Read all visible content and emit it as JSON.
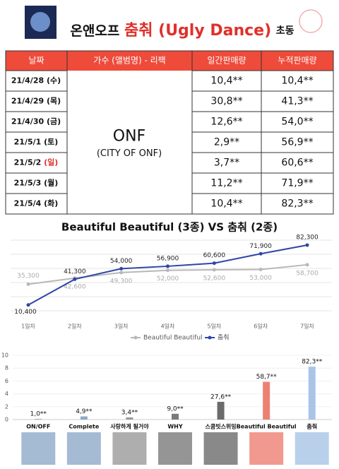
{
  "header": {
    "artist": "온앤오프",
    "song": "춤춰 (Ugly Dance)",
    "suffix": "초동"
  },
  "table": {
    "headers": [
      "날짜",
      "가수 (앨범명) - 리팩",
      "일간판매량",
      "누적판매량"
    ],
    "artist": "ONF",
    "album": "(CITY OF ONF)",
    "rows": [
      [
        "21/4/28",
        "(수)",
        "10,4**",
        "10,4**"
      ],
      [
        "21/4/29",
        "(목)",
        "30,8**",
        "41,3**"
      ],
      [
        "21/4/30",
        "(금)",
        "12,6**",
        "54,0**"
      ],
      [
        "21/5/1",
        "(토)",
        "2,9**",
        "56,9**"
      ],
      [
        "21/5/2",
        "(일)",
        "3,7**",
        "60,6**"
      ],
      [
        "21/5/3",
        "(월)",
        "11,2**",
        "71,9**"
      ],
      [
        "21/5/4",
        "(화)",
        "10,4**",
        "82,3**"
      ]
    ]
  },
  "chart_data": [
    {
      "type": "line",
      "title": "Beautiful Beautiful (3종) VS 춤춰 (2종)",
      "grid": true,
      "categories": [
        "1일차",
        "2일차",
        "3일차",
        "4일차",
        "5일차",
        "6일차",
        "7일차"
      ],
      "series": [
        {
          "name": "Beautiful Beautiful",
          "color": "#b8b8b8",
          "values": [
            35300,
            42600,
            49300,
            52000,
            52600,
            53000,
            58700
          ],
          "value_labels": [
            "35,300",
            "42,600",
            "49,300",
            "52,000",
            "52,600",
            "53,000",
            "58,700"
          ]
        },
        {
          "name": "춤춰",
          "color": "#2f45a8",
          "values": [
            10400,
            41300,
            54000,
            56900,
            60600,
            71900,
            82300
          ],
          "value_labels": [
            "10,400",
            "41,300",
            "54,000",
            "56,900",
            "60,600",
            "71,900",
            "82,300"
          ]
        }
      ]
    },
    {
      "type": "bar",
      "categories": [
        "ON/OFF",
        "Complete",
        "사랑하게 될거야",
        "WHY",
        "스쿰빗스위밍",
        "Beautiful Beautiful",
        "춤춰"
      ],
      "values": [
        0.1,
        0.49,
        0.34,
        0.9,
        2.76,
        5.87,
        8.23
      ],
      "value_labels": [
        "1,0**",
        "4,9**",
        "3,4**",
        "9,0**",
        "27,6**",
        "58,7**",
        "82,3**"
      ],
      "colors": [
        "#8ea9c8",
        "#8ea9c8",
        "#9a9a9a",
        "#7a7a7a",
        "#6b6b6b",
        "#ee8072",
        "#a8c4e6"
      ],
      "ylim": [
        0,
        10
      ],
      "yticks": [
        0,
        2,
        4,
        6,
        8,
        10
      ]
    }
  ]
}
